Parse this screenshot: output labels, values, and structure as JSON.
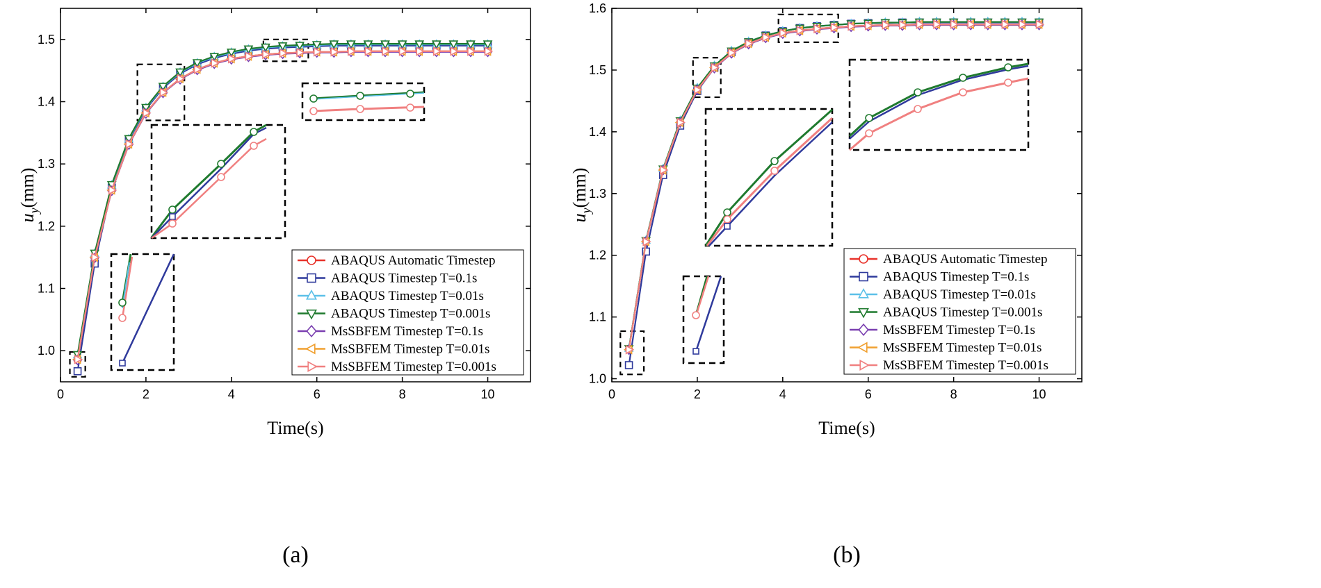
{
  "chart_data": [
    {
      "type": "line",
      "caption": "(a)",
      "xlabel": "Time(s)",
      "ylabel_main": "u",
      "ylabel_sub": "y",
      "ylabel_unit": "(mm)",
      "xlim": [
        0,
        11
      ],
      "ylim": [
        0.95,
        1.55
      ],
      "xticks": [
        0,
        2,
        4,
        6,
        8,
        10
      ],
      "yticks": [
        1.0,
        1.1,
        1.2,
        1.3,
        1.4,
        1.5
      ],
      "ytick_labels": [
        "1.0",
        "1.1",
        "1.2",
        "1.3",
        "1.4",
        "1.5"
      ],
      "x": [
        0.4,
        0.8,
        1.2,
        1.6,
        2.0,
        2.4,
        2.8,
        3.2,
        3.6,
        4.0,
        4.4,
        4.8,
        5.2,
        5.6,
        6.0,
        6.4,
        6.8,
        7.2,
        7.6,
        8.0,
        8.4,
        8.8,
        9.2,
        9.6,
        10.0
      ],
      "series": [
        {
          "name": "ABAQUS Automatic Timestep",
          "color": "#e8322a",
          "marker": "circle",
          "values": [
            0.985,
            1.15,
            1.258,
            1.332,
            1.382,
            1.415,
            1.437,
            1.452,
            1.462,
            1.469,
            1.473,
            1.476,
            1.478,
            1.479,
            1.48,
            1.48,
            1.481,
            1.481,
            1.481,
            1.481,
            1.481,
            1.481,
            1.481,
            1.481,
            1.481
          ]
        },
        {
          "name": "ABAQUS Timestep T=0.1s",
          "color": "#2f3a9c",
          "marker": "square",
          "values": [
            0.967,
            1.14,
            1.262,
            1.338,
            1.388,
            1.422,
            1.445,
            1.46,
            1.47,
            1.477,
            1.482,
            1.485,
            1.487,
            1.488,
            1.489,
            1.49,
            1.49,
            1.49,
            1.49,
            1.49,
            1.49,
            1.49,
            1.49,
            1.49,
            1.49
          ]
        },
        {
          "name": "ABAQUS Timestep T=0.01s",
          "color": "#5bc0e8",
          "marker": "triangle-up",
          "values": [
            0.993,
            1.156,
            1.266,
            1.34,
            1.39,
            1.424,
            1.447,
            1.462,
            1.472,
            1.479,
            1.484,
            1.487,
            1.489,
            1.49,
            1.491,
            1.492,
            1.492,
            1.492,
            1.492,
            1.492,
            1.492,
            1.492,
            1.492,
            1.492,
            1.492
          ]
        },
        {
          "name": "ABAQUS Timestep T=0.001s",
          "color": "#1f7a2e",
          "marker": "triangle-down",
          "values": [
            0.994,
            1.157,
            1.267,
            1.341,
            1.391,
            1.425,
            1.448,
            1.463,
            1.473,
            1.48,
            1.485,
            1.488,
            1.49,
            1.491,
            1.492,
            1.493,
            1.493,
            1.493,
            1.493,
            1.493,
            1.493,
            1.493,
            1.493,
            1.493,
            1.493
          ]
        },
        {
          "name": "MsSBFEM Timestep T=0.1s",
          "color": "#7a3fb0",
          "marker": "diamond",
          "values": [
            0.985,
            1.149,
            1.257,
            1.331,
            1.381,
            1.414,
            1.436,
            1.451,
            1.461,
            1.468,
            1.472,
            1.475,
            1.477,
            1.478,
            1.479,
            1.479,
            1.48,
            1.48,
            1.48,
            1.48,
            1.48,
            1.48,
            1.48,
            1.48,
            1.48
          ]
        },
        {
          "name": "MsSBFEM Timestep T=0.01s",
          "color": "#f0a030",
          "marker": "triangle-left",
          "values": [
            0.986,
            1.15,
            1.258,
            1.332,
            1.382,
            1.415,
            1.437,
            1.452,
            1.462,
            1.469,
            1.473,
            1.476,
            1.478,
            1.479,
            1.48,
            1.48,
            1.481,
            1.481,
            1.481,
            1.481,
            1.481,
            1.481,
            1.481,
            1.481,
            1.481
          ]
        },
        {
          "name": "MsSBFEM Timestep T=0.001s",
          "color": "#f08080",
          "marker": "triangle-right",
          "values": [
            0.986,
            1.15,
            1.258,
            1.332,
            1.382,
            1.415,
            1.437,
            1.452,
            1.462,
            1.469,
            1.473,
            1.476,
            1.478,
            1.479,
            1.48,
            1.48,
            1.481,
            1.481,
            1.481,
            1.481,
            1.481,
            1.481,
            1.481,
            1.481,
            1.481
          ]
        }
      ],
      "zoom_regions": [
        {
          "x0": 0.22,
          "x1": 0.58,
          "y0": 0.958,
          "y1": 0.998
        },
        {
          "x0": 1.8,
          "x1": 2.9,
          "y0": 1.37,
          "y1": 1.46
        },
        {
          "x0": 4.75,
          "x1": 5.8,
          "y0": 1.465,
          "y1": 1.5
        }
      ],
      "legend_position": "bottom-right"
    },
    {
      "type": "line",
      "caption": "(b)",
      "xlabel": "Time(s)",
      "ylabel_main": "u",
      "ylabel_sub": "y",
      "ylabel_unit": "(mm)",
      "xlim": [
        0,
        11
      ],
      "ylim": [
        0.995,
        1.6
      ],
      "xticks": [
        0,
        2,
        4,
        6,
        8,
        10
      ],
      "yticks": [
        1.0,
        1.1,
        1.2,
        1.3,
        1.4,
        1.5,
        1.6
      ],
      "ytick_labels": [
        "1.0",
        "1.1",
        "1.2",
        "1.3",
        "1.4",
        "1.5",
        "1.6"
      ],
      "x": [
        0.4,
        0.8,
        1.2,
        1.6,
        2.0,
        2.4,
        2.8,
        3.2,
        3.6,
        4.0,
        4.4,
        4.8,
        5.2,
        5.6,
        6.0,
        6.4,
        6.8,
        7.2,
        7.6,
        8.0,
        8.4,
        8.8,
        9.2,
        9.6,
        10.0
      ],
      "series": [
        {
          "name": "ABAQUS Automatic Timestep",
          "color": "#e8322a",
          "marker": "circle",
          "values": [
            1.047,
            1.222,
            1.338,
            1.415,
            1.468,
            1.504,
            1.528,
            1.543,
            1.553,
            1.56,
            1.564,
            1.567,
            1.569,
            1.571,
            1.572,
            1.573,
            1.573,
            1.574,
            1.574,
            1.574,
            1.574,
            1.574,
            1.574,
            1.574,
            1.574
          ]
        },
        {
          "name": "ABAQUS Timestep T=0.1s",
          "color": "#2f3a9c",
          "marker": "square",
          "values": [
            1.022,
            1.206,
            1.33,
            1.41,
            1.466,
            1.504,
            1.529,
            1.545,
            1.556,
            1.563,
            1.568,
            1.571,
            1.573,
            1.575,
            1.576,
            1.576,
            1.577,
            1.577,
            1.577,
            1.577,
            1.577,
            1.577,
            1.577,
            1.577,
            1.577
          ]
        },
        {
          "name": "ABAQUS Timestep T=0.01s",
          "color": "#5bc0e8",
          "marker": "triangle-up",
          "values": [
            1.049,
            1.224,
            1.34,
            1.418,
            1.471,
            1.507,
            1.531,
            1.546,
            1.556,
            1.563,
            1.568,
            1.571,
            1.573,
            1.575,
            1.576,
            1.577,
            1.577,
            1.578,
            1.578,
            1.578,
            1.578,
            1.578,
            1.578,
            1.578,
            1.578
          ]
        },
        {
          "name": "ABAQUS Timestep T=0.001s",
          "color": "#1f7a2e",
          "marker": "triangle-down",
          "values": [
            1.049,
            1.224,
            1.34,
            1.418,
            1.471,
            1.507,
            1.531,
            1.546,
            1.556,
            1.563,
            1.568,
            1.571,
            1.573,
            1.575,
            1.576,
            1.577,
            1.577,
            1.578,
            1.578,
            1.578,
            1.578,
            1.578,
            1.578,
            1.578,
            1.578
          ]
        },
        {
          "name": "MsSBFEM Timestep T=0.1s",
          "color": "#7a3fb0",
          "marker": "diamond",
          "values": [
            1.047,
            1.222,
            1.338,
            1.415,
            1.468,
            1.503,
            1.527,
            1.542,
            1.552,
            1.559,
            1.563,
            1.566,
            1.568,
            1.57,
            1.571,
            1.572,
            1.572,
            1.573,
            1.573,
            1.573,
            1.573,
            1.573,
            1.573,
            1.573,
            1.573
          ]
        },
        {
          "name": "MsSBFEM Timestep T=0.01s",
          "color": "#f0a030",
          "marker": "triangle-left",
          "values": [
            1.047,
            1.222,
            1.338,
            1.415,
            1.468,
            1.504,
            1.528,
            1.543,
            1.553,
            1.56,
            1.564,
            1.567,
            1.569,
            1.571,
            1.572,
            1.573,
            1.573,
            1.574,
            1.574,
            1.574,
            1.574,
            1.574,
            1.574,
            1.574,
            1.574
          ]
        },
        {
          "name": "MsSBFEM Timestep T=0.001s",
          "color": "#f08080",
          "marker": "triangle-right",
          "values": [
            1.047,
            1.222,
            1.338,
            1.415,
            1.468,
            1.504,
            1.528,
            1.543,
            1.553,
            1.56,
            1.564,
            1.567,
            1.569,
            1.571,
            1.572,
            1.573,
            1.573,
            1.574,
            1.574,
            1.574,
            1.574,
            1.574,
            1.574,
            1.574,
            1.574
          ]
        }
      ],
      "zoom_regions": [
        {
          "x0": 0.2,
          "x1": 0.75,
          "y0": 1.007,
          "y1": 1.077
        },
        {
          "x0": 1.9,
          "x1": 2.55,
          "y0": 1.456,
          "y1": 1.52
        },
        {
          "x0": 3.9,
          "x1": 5.3,
          "y0": 1.545,
          "y1": 1.59
        }
      ],
      "legend_position": "bottom-right"
    }
  ]
}
